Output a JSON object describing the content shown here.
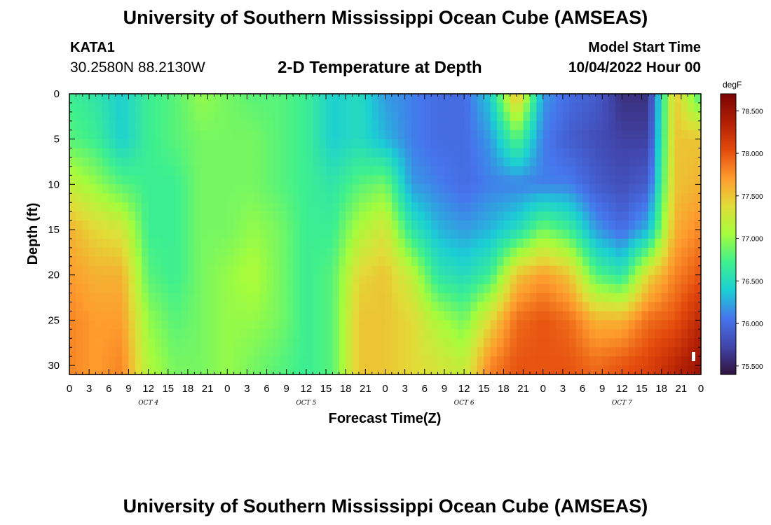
{
  "header": {
    "title": "University of Southern Mississippi Ocean Cube (AMSEAS)",
    "station_id": "KATA1",
    "station_coords": "30.2580N  88.2130W",
    "subtitle": "2-D Temperature at Depth",
    "model_start_label": "Model Start Time",
    "model_start_value": "10/04/2022 Hour 00"
  },
  "footer": {
    "title": "University of Southern Mississippi Ocean Cube (AMSEAS)"
  },
  "chart_data": {
    "type": "heatmap",
    "title": "2-D Temperature at Depth",
    "xlabel": "Forecast Time(Z)",
    "ylabel": "Depth (ft)",
    "x_range_hours": [
      0,
      96
    ],
    "y_range_ft": [
      0,
      31
    ],
    "x_tick_labels": [
      "0",
      "3",
      "6",
      "9",
      "12",
      "15",
      "18",
      "21",
      "0",
      "3",
      "6",
      "9",
      "12",
      "15",
      "18",
      "21",
      "0",
      "3",
      "6",
      "9",
      "12",
      "15",
      "18",
      "21",
      "0",
      "3",
      "6",
      "9",
      "12",
      "15",
      "18",
      "21",
      "0"
    ],
    "day_labels": [
      {
        "label": "OCT  4",
        "hour": 12
      },
      {
        "label": "OCT  5",
        "hour": 36
      },
      {
        "label": "OCT  6",
        "hour": 60
      },
      {
        "label": "OCT  7",
        "hour": 84
      }
    ],
    "y_tick_values": [
      0,
      5,
      10,
      15,
      20,
      25,
      30
    ],
    "colorbar": {
      "unit": "degF",
      "min": 75.4,
      "max": 78.7,
      "tick_values": [
        75.5,
        76.0,
        76.5,
        77.0,
        77.5,
        78.0,
        78.5
      ],
      "tick_labels": [
        "75.500",
        "76.000",
        "76.500",
        "77.000",
        "77.500",
        "78.000",
        "78.500"
      ]
    },
    "columns_hours": [
      0,
      4,
      8,
      12,
      16,
      20,
      24,
      28,
      32,
      36,
      40,
      44,
      48,
      52,
      56,
      60,
      64,
      68,
      72,
      76,
      80,
      84,
      88,
      92,
      96
    ],
    "depth_levels_ft": [
      0,
      5,
      10,
      15,
      20,
      25,
      30
    ],
    "temperature_profiles_degF": [
      [
        76.7,
        76.8,
        77.2,
        77.6,
        77.7,
        77.8,
        77.8
      ],
      [
        76.6,
        76.7,
        77.0,
        77.4,
        77.6,
        77.7,
        77.7
      ],
      [
        76.4,
        76.4,
        76.8,
        77.3,
        77.6,
        77.7,
        77.8
      ],
      [
        76.7,
        76.7,
        76.7,
        76.7,
        76.8,
        77.0,
        77.1
      ],
      [
        76.8,
        76.8,
        76.7,
        76.7,
        76.7,
        76.8,
        76.9
      ],
      [
        77.0,
        76.9,
        76.9,
        76.9,
        76.9,
        76.9,
        76.9
      ],
      [
        76.9,
        76.9,
        76.9,
        76.9,
        77.0,
        77.0,
        77.0
      ],
      [
        76.8,
        76.9,
        76.9,
        77.0,
        77.1,
        77.0,
        76.9
      ],
      [
        76.8,
        76.8,
        76.8,
        76.9,
        76.9,
        76.9,
        76.8
      ],
      [
        76.7,
        76.7,
        76.7,
        76.7,
        76.7,
        76.7,
        76.7
      ],
      [
        76.4,
        76.4,
        76.6,
        76.7,
        76.8,
        76.8,
        76.8
      ],
      [
        76.5,
        76.5,
        76.8,
        77.1,
        77.4,
        77.5,
        77.5
      ],
      [
        76.2,
        76.3,
        76.9,
        77.3,
        77.5,
        77.5,
        77.5
      ],
      [
        76.1,
        76.1,
        76.2,
        76.6,
        77.2,
        77.4,
        77.4
      ],
      [
        76.0,
        76.0,
        76.1,
        76.3,
        76.6,
        77.1,
        77.3
      ],
      [
        76.0,
        76.0,
        76.0,
        76.2,
        76.5,
        76.9,
        77.2
      ],
      [
        76.4,
        76.2,
        76.1,
        76.3,
        76.7,
        77.4,
        77.8
      ],
      [
        77.6,
        76.8,
        76.1,
        76.5,
        77.5,
        77.9,
        78.0
      ],
      [
        76.2,
        76.1,
        76.1,
        76.9,
        77.7,
        78.0,
        78.0
      ],
      [
        76.0,
        75.9,
        76.1,
        76.7,
        77.5,
        77.9,
        78.0
      ],
      [
        75.9,
        75.8,
        75.9,
        76.2,
        76.8,
        77.6,
        77.9
      ],
      [
        75.6,
        75.7,
        75.8,
        76.0,
        76.6,
        77.6,
        78.0
      ],
      [
        75.6,
        75.7,
        75.9,
        76.3,
        77.4,
        77.9,
        78.1
      ],
      [
        77.5,
        77.5,
        77.5,
        77.6,
        77.8,
        78.0,
        78.3
      ],
      [
        76.7,
        77.5,
        77.6,
        77.8,
        78.0,
        78.3,
        78.5
      ]
    ]
  }
}
